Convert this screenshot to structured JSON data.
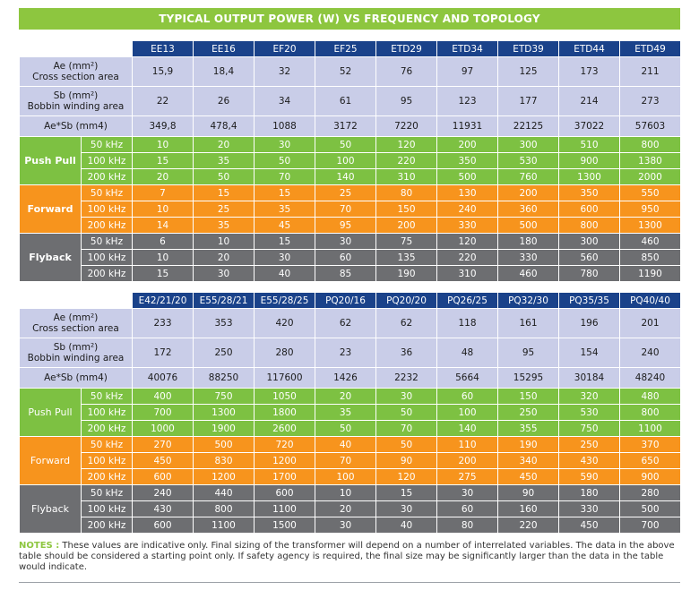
{
  "title": "TYPICAL OUTPUT POWER (W) VS FREQUENCY AND TOPOLOGY",
  "colors": {
    "header": "#1a428a",
    "property": "#c9cde8",
    "push_pull": "#7dc142",
    "forward": "#f7941d",
    "flyback": "#6d6e71",
    "title": "#8dc63f"
  },
  "tables": [
    {
      "cores": [
        "EE13",
        "EE16",
        "EF20",
        "EF25",
        "ETD29",
        "ETD34",
        "ETD39",
        "ETD44",
        "ETD49"
      ],
      "properties": [
        {
          "label1": "Ae (mm²)",
          "label2": "Cross section area",
          "values": [
            "15,9",
            "18,4",
            "32",
            "52",
            "76",
            "97",
            "125",
            "173",
            "211"
          ]
        },
        {
          "label1": "Sb (mm²)",
          "label2": "Bobbin winding area",
          "values": [
            "22",
            "26",
            "34",
            "61",
            "95",
            "123",
            "177",
            "214",
            "273"
          ]
        },
        {
          "label1": "Ae*Sb (mm4)",
          "label2": "",
          "values": [
            "349,8",
            "478,4",
            "1088",
            "3172",
            "7220",
            "11931",
            "22125",
            "37022",
            "57603"
          ]
        }
      ],
      "groups": [
        {
          "name": "Push Pull",
          "rows": [
            {
              "freq": "50 kHz",
              "values": [
                "10",
                "20",
                "30",
                "50",
                "120",
                "200",
                "300",
                "510",
                "800"
              ]
            },
            {
              "freq": "100 kHz",
              "values": [
                "15",
                "35",
                "50",
                "100",
                "220",
                "350",
                "530",
                "900",
                "1380"
              ]
            },
            {
              "freq": "200 kHz",
              "values": [
                "20",
                "50",
                "70",
                "140",
                "310",
                "500",
                "760",
                "1300",
                "2000"
              ]
            }
          ]
        },
        {
          "name": "Forward",
          "rows": [
            {
              "freq": "50 kHz",
              "values": [
                "7",
                "15",
                "15",
                "25",
                "80",
                "130",
                "200",
                "350",
                "550"
              ]
            },
            {
              "freq": "100 kHz",
              "values": [
                "10",
                "25",
                "35",
                "70",
                "150",
                "240",
                "360",
                "600",
                "950"
              ]
            },
            {
              "freq": "200 kHz",
              "values": [
                "14",
                "35",
                "45",
                "95",
                "200",
                "330",
                "500",
                "800",
                "1300"
              ]
            }
          ]
        },
        {
          "name": "Flyback",
          "rows": [
            {
              "freq": "50 kHz",
              "values": [
                "6",
                "10",
                "15",
                "30",
                "75",
                "120",
                "180",
                "300",
                "460"
              ]
            },
            {
              "freq": "100 kHz",
              "values": [
                "10",
                "20",
                "30",
                "60",
                "135",
                "220",
                "330",
                "560",
                "850"
              ]
            },
            {
              "freq": "200 kHz",
              "values": [
                "15",
                "30",
                "40",
                "85",
                "190",
                "310",
                "460",
                "780",
                "1190"
              ]
            }
          ]
        }
      ]
    },
    {
      "cores": [
        "E42/21/20",
        "E55/28/21",
        "E55/28/25",
        "PQ20/16",
        "PQ20/20",
        "PQ26/25",
        "PQ32/30",
        "PQ35/35",
        "PQ40/40"
      ],
      "properties": [
        {
          "label1": "Ae (mm²)",
          "label2": "Cross section area",
          "values": [
            "233",
            "353",
            "420",
            "62",
            "62",
            "118",
            "161",
            "196",
            "201"
          ]
        },
        {
          "label1": "Sb (mm²)",
          "label2": "Bobbin winding area",
          "values": [
            "172",
            "250",
            "280",
            "23",
            "36",
            "48",
            "95",
            "154",
            "240"
          ]
        },
        {
          "label1": "Ae*Sb (mm4)",
          "label2": "",
          "values": [
            "40076",
            "88250",
            "117600",
            "1426",
            "2232",
            "5664",
            "15295",
            "30184",
            "48240"
          ]
        }
      ],
      "groups": [
        {
          "name": "Push Pull",
          "rows": [
            {
              "freq": "50 kHz",
              "values": [
                "400",
                "750",
                "1050",
                "20",
                "30",
                "60",
                "150",
                "320",
                "480"
              ]
            },
            {
              "freq": "100 kHz",
              "values": [
                "700",
                "1300",
                "1800",
                "35",
                "50",
                "100",
                "250",
                "530",
                "800"
              ]
            },
            {
              "freq": "200 kHz",
              "values": [
                "1000",
                "1900",
                "2600",
                "50",
                "70",
                "140",
                "355",
                "750",
                "1100"
              ]
            }
          ]
        },
        {
          "name": "Forward",
          "rows": [
            {
              "freq": "50 kHz",
              "values": [
                "270",
                "500",
                "720",
                "40",
                "50",
                "110",
                "190",
                "250",
                "370"
              ]
            },
            {
              "freq": "100 kHz",
              "values": [
                "450",
                "830",
                "1200",
                "70",
                "90",
                "200",
                "340",
                "430",
                "650"
              ]
            },
            {
              "freq": "200 kHz",
              "values": [
                "600",
                "1200",
                "1700",
                "100",
                "120",
                "275",
                "450",
                "590",
                "900"
              ]
            }
          ]
        },
        {
          "name": "Flyback",
          "rows": [
            {
              "freq": "50 kHz",
              "values": [
                "240",
                "440",
                "600",
                "10",
                "15",
                "30",
                "90",
                "180",
                "280"
              ]
            },
            {
              "freq": "100 kHz",
              "values": [
                "430",
                "800",
                "1100",
                "20",
                "30",
                "60",
                "160",
                "330",
                "500"
              ]
            },
            {
              "freq": "200 kHz",
              "values": [
                "600",
                "1100",
                "1500",
                "30",
                "40",
                "80",
                "220",
                "450",
                "700"
              ]
            }
          ]
        }
      ]
    }
  ],
  "notes": {
    "label": "NOTES :",
    "text": " These values are indicative only. Final sizing of the transformer will depend on a number of interrelated variables. The data in the above table should be considered a starting point only. If safety agency is required, the final size may be significantly larger than the data in the table would indicate."
  }
}
